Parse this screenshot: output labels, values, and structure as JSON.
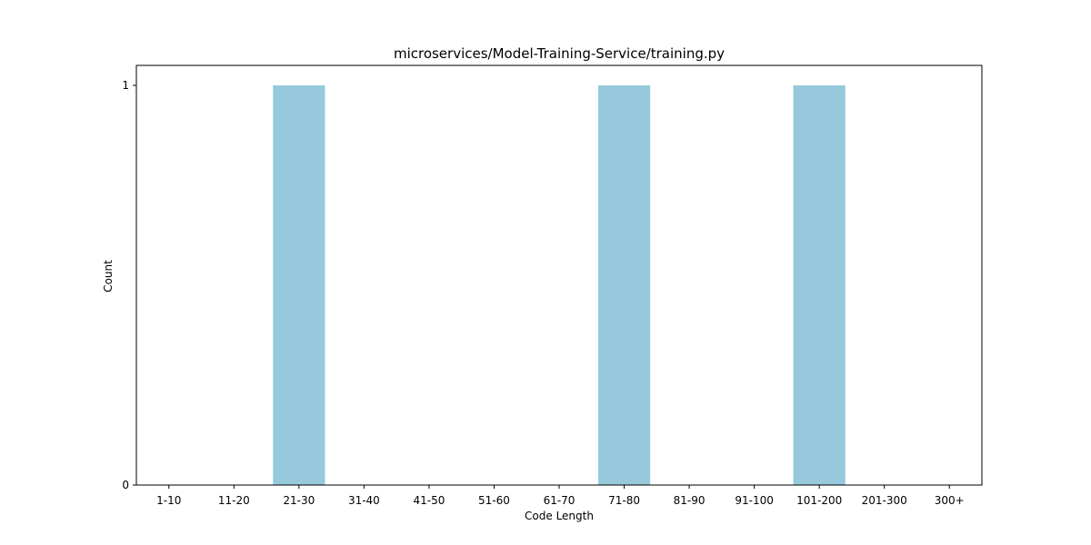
{
  "chart_data": {
    "type": "bar",
    "title": "microservices/Model-Training-Service/training.py",
    "xlabel": "Code Length",
    "ylabel": "Count",
    "categories": [
      "1-10",
      "11-20",
      "21-30",
      "31-40",
      "41-50",
      "51-60",
      "61-70",
      "71-80",
      "81-90",
      "91-100",
      "101-200",
      "201-300",
      "300+"
    ],
    "values": [
      0,
      0,
      1,
      0,
      0,
      0,
      0,
      1,
      0,
      0,
      1,
      0,
      0
    ],
    "ylim": [
      0,
      1
    ],
    "yticks": [
      0,
      1
    ],
    "grid": false,
    "bar_color": "#96c9dc"
  }
}
